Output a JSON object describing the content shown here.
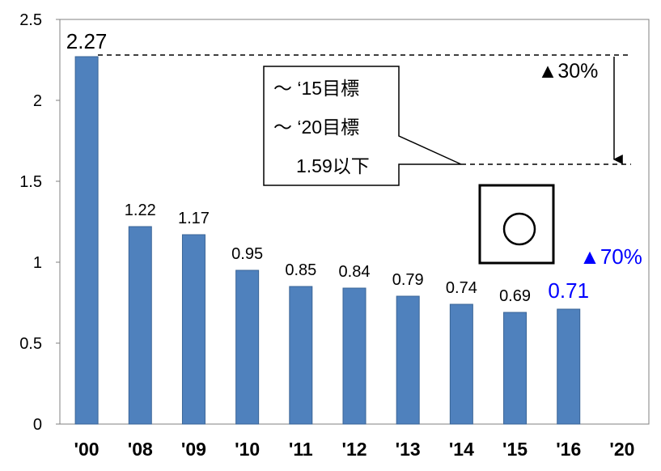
{
  "chart_data": {
    "type": "bar",
    "categories": [
      "'00",
      "'08",
      "'09",
      "'10",
      "'11",
      "'12",
      "'13",
      "'14",
      "'15",
      "'16",
      "'20"
    ],
    "values": [
      2.27,
      1.22,
      1.17,
      0.95,
      0.85,
      0.84,
      0.79,
      0.74,
      0.69,
      0.71,
      null
    ],
    "data_labels": [
      "2.27",
      "1.22",
      "1.17",
      "0.95",
      "0.85",
      "0.84",
      "0.79",
      "0.74",
      "0.69",
      "0.71",
      ""
    ],
    "ylim": [
      0,
      2.5
    ],
    "yticks": [
      0,
      0.5,
      1,
      1.5,
      2,
      2.5
    ],
    "ytick_labels": [
      "0",
      "0.5",
      "1",
      "1.5",
      "2",
      "2.5"
    ],
    "grid": false,
    "title": "",
    "xlabel": "",
    "ylabel": "",
    "highlight_index": 9,
    "colors": {
      "bar": "#4f81bd",
      "bar_edge": "#3a6496",
      "highlight_text": "#0000ff",
      "text": "#000000"
    },
    "reference_values": [
      2.27,
      1.59
    ],
    "annotations": {
      "target_box_lines": [
        "～ ‘15目標",
        "～ ‘20目標",
        "1.59以下"
      ],
      "reduction_30": "▲30%",
      "reduction_70": "▲70%",
      "achieved_symbol": "○"
    }
  }
}
